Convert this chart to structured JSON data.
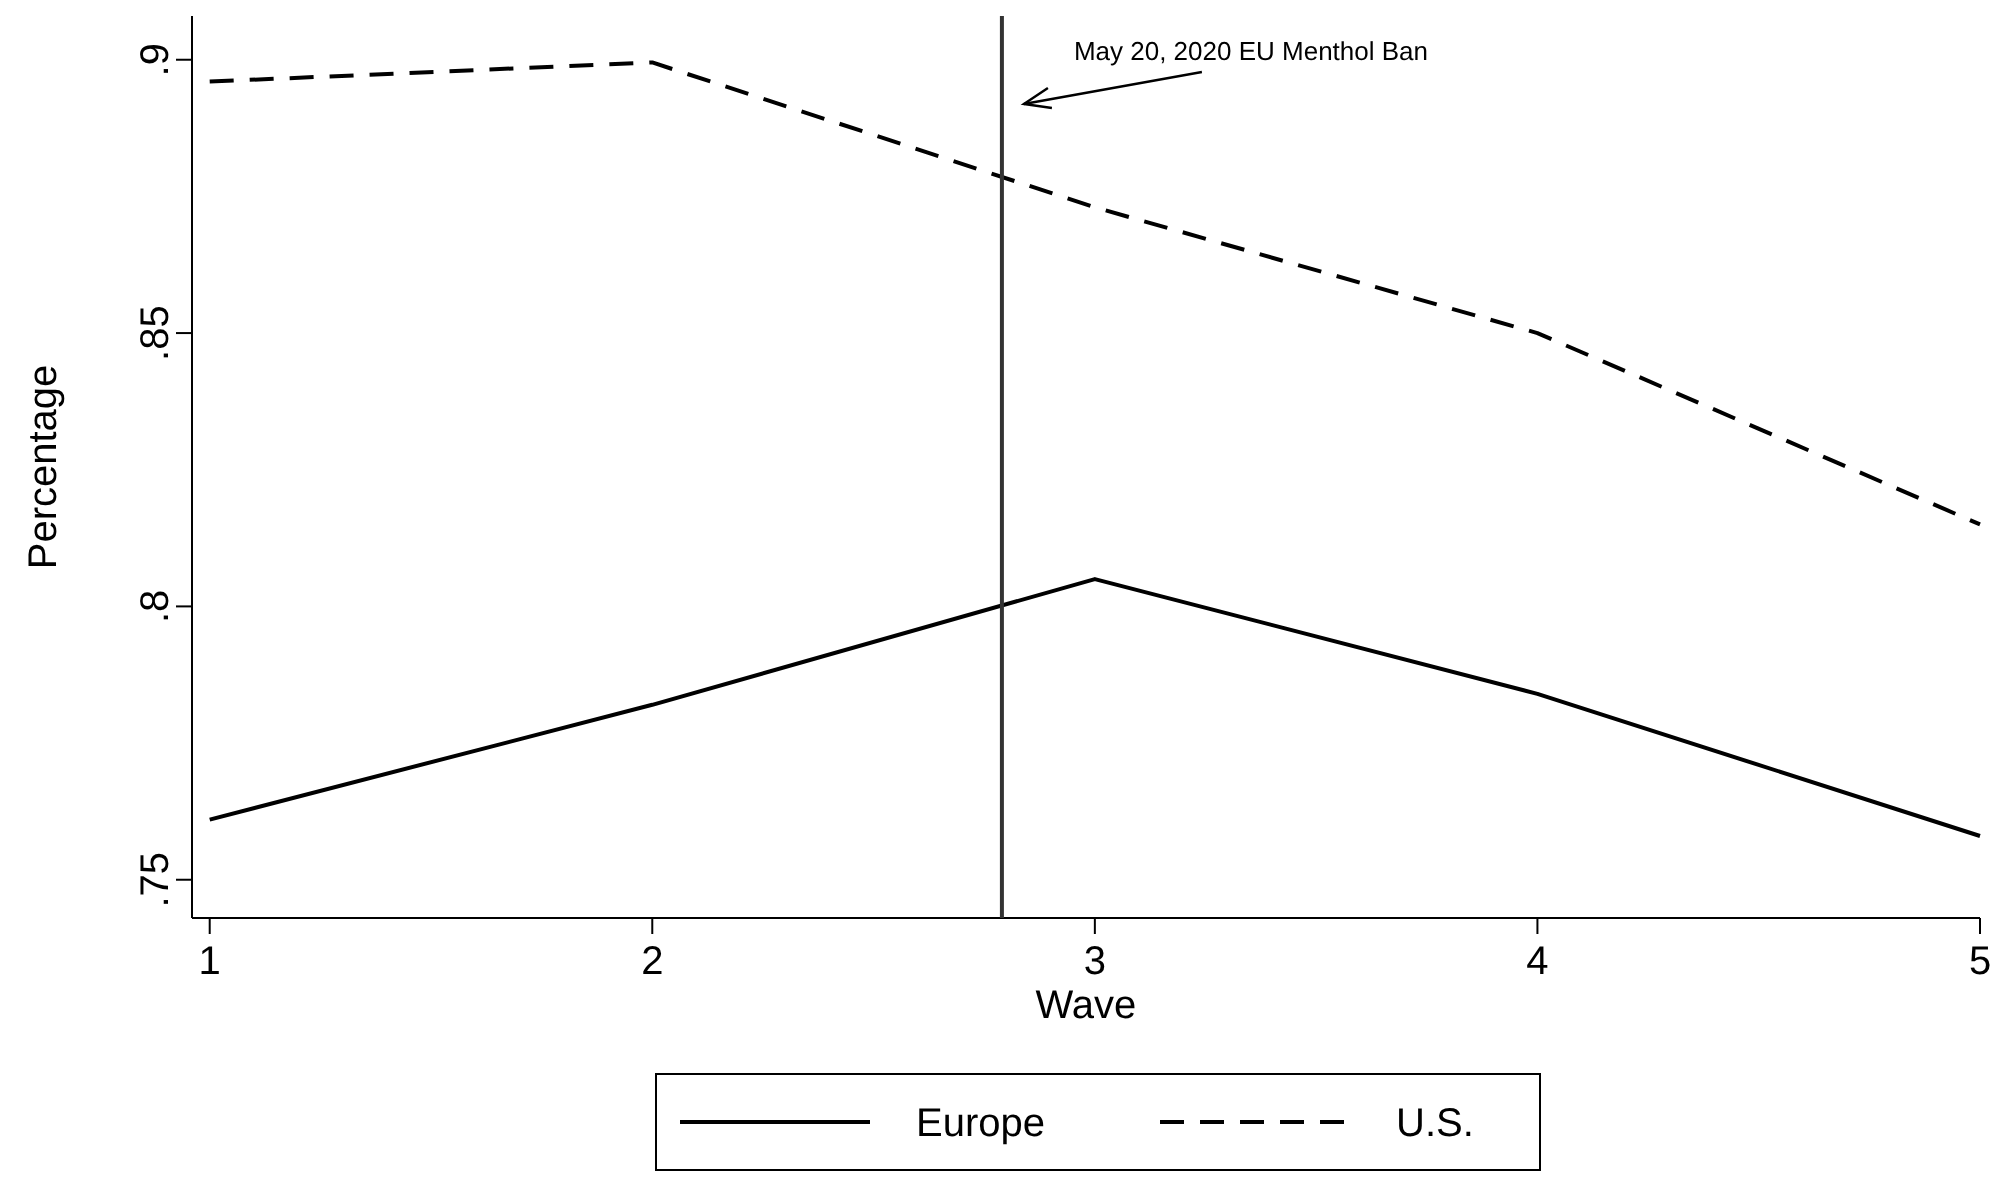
{
  "chart_data": {
    "type": "line",
    "xlabel": "Wave",
    "ylabel": "Percentage",
    "x": [
      1,
      2,
      3,
      4,
      5
    ],
    "series": [
      {
        "name": "Europe",
        "color": "#000000",
        "line_style": "solid",
        "values": [
          0.761,
          0.782,
          0.805,
          0.784,
          0.758
        ]
      },
      {
        "name": "U.S.",
        "color": "#000000",
        "line_style": "dashed",
        "values": [
          0.896,
          0.8995,
          0.873,
          0.85,
          0.815
        ]
      }
    ],
    "xlim": [
      0.96,
      5
    ],
    "xticks": [
      1,
      2,
      3,
      4,
      5
    ],
    "ylim": [
      0.743,
      0.908
    ],
    "yticks": [
      {
        "value": 0.75,
        "label": ".75"
      },
      {
        "value": 0.8,
        "label": ".8"
      },
      {
        "value": 0.85,
        "label": ".85"
      },
      {
        "value": 0.9,
        "label": ".9"
      }
    ],
    "ref_lines": [
      {
        "axis": "x",
        "value": 2.79,
        "label": "May 20, 2020 EU Menthol Ban",
        "color": "#333333"
      }
    ],
    "grid": false,
    "legend": "bottom",
    "marker": "none"
  }
}
